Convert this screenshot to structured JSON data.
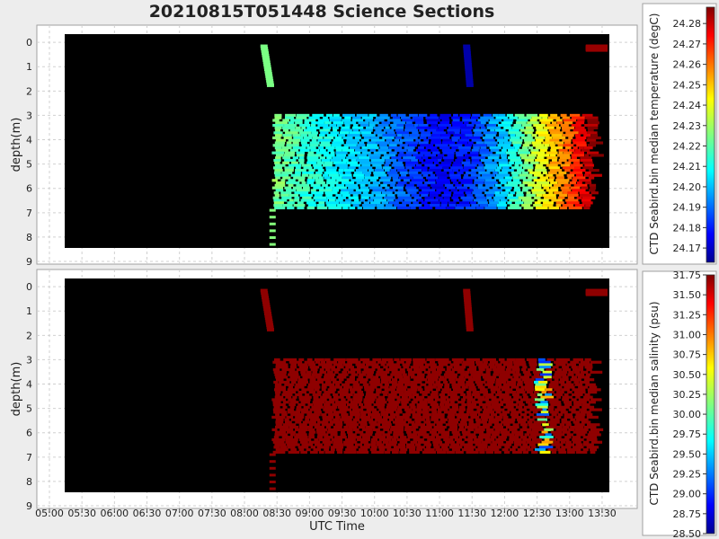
{
  "chart_data": {
    "title": "20210815T051448 Science Sections",
    "xlabel": "UTC Time",
    "x_ticks": [
      "05:00",
      "05:30",
      "06:00",
      "06:30",
      "07:00",
      "07:30",
      "08:00",
      "08:30",
      "09:00",
      "09:30",
      "10:00",
      "10:30",
      "11:00",
      "11:30",
      "12:00",
      "12:30",
      "13:00",
      "13:30"
    ],
    "x_range": [
      "05:00",
      "13:40"
    ],
    "data_time_range": [
      "05:15",
      "13:35"
    ],
    "grid": true,
    "panels": [
      {
        "type": "heatmap",
        "ylabel": "depth(m)",
        "y_ticks": [
          0,
          1,
          2,
          3,
          4,
          5,
          6,
          7,
          8,
          9
        ],
        "ylim": [
          9.3,
          -0.3
        ],
        "colorbar_label": "CTD Seabird.bin median temperature (degC)",
        "colorbar_ticks": [
          "24.17",
          "24.18",
          "24.19",
          "24.20",
          "24.21",
          "24.22",
          "24.23",
          "24.24",
          "24.25",
          "24.26",
          "24.27",
          "24.28"
        ],
        "colorbar_range": [
          24.163,
          24.288
        ],
        "colormap": "jet",
        "profiles": [
          {
            "start": "08:18",
            "end": "08:24",
            "depth": [
              0.2,
              1.8
            ],
            "value": 24.225
          },
          {
            "start": "11:25",
            "end": "11:28",
            "depth": [
              0.2,
              1.8
            ],
            "value": 24.168
          },
          {
            "start": "13:15",
            "end": "13:35",
            "depth": [
              0.2,
              0.35
            ],
            "value": 24.285
          }
        ],
        "section_depth": [
          3.0,
          6.8
        ],
        "section_values": [
          {
            "time": "08:25",
            "value": 24.226
          },
          {
            "time": "09:00",
            "value": 24.215
          },
          {
            "time": "09:30",
            "value": 24.207
          },
          {
            "time": "10:00",
            "value": 24.2
          },
          {
            "time": "10:30",
            "value": 24.188
          },
          {
            "time": "11:00",
            "value": 24.178
          },
          {
            "time": "11:30",
            "value": 24.183
          },
          {
            "time": "12:00",
            "value": 24.205
          },
          {
            "time": "12:30",
            "value": 24.235
          },
          {
            "time": "13:00",
            "value": 24.262
          },
          {
            "time": "13:20",
            "value": 24.285
          }
        ]
      },
      {
        "type": "heatmap",
        "ylabel": "depth(m)",
        "y_ticks": [
          0,
          1,
          2,
          3,
          4,
          5,
          6,
          7,
          8,
          9
        ],
        "ylim": [
          9.3,
          -0.3
        ],
        "colorbar_label": "CTD Seabird.bin median salinity (psu)",
        "colorbar_ticks": [
          "28.50",
          "28.75",
          "29.00",
          "29.25",
          "29.50",
          "29.75",
          "30.00",
          "30.25",
          "30.50",
          "30.75",
          "31.00",
          "31.25",
          "31.50",
          "31.75"
        ],
        "colorbar_range": [
          28.5,
          31.75
        ],
        "colormap": "jet",
        "profiles": [
          {
            "start": "08:18",
            "end": "08:24",
            "depth": [
              0.2,
              1.8
            ],
            "value": 31.7
          },
          {
            "start": "11:25",
            "end": "11:28",
            "depth": [
              0.2,
              1.8
            ],
            "value": 31.7
          },
          {
            "start": "13:15",
            "end": "13:35",
            "depth": [
              0.2,
              0.35
            ],
            "value": 31.7
          }
        ],
        "section_depth": [
          3.0,
          6.8
        ],
        "section_value": 31.7,
        "anomaly": {
          "start": "12:27",
          "end": "12:38",
          "value_range": [
            29.0,
            31.0
          ]
        }
      }
    ]
  }
}
